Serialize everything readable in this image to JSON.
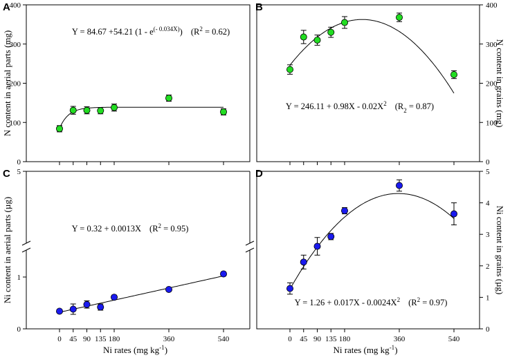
{
  "chart_data": [
    {
      "panel": "A",
      "type": "scatter",
      "ylabel": "N content in aerial parts (mg)",
      "xlabel": "",
      "x": [
        0,
        45,
        90,
        135,
        180,
        360,
        540
      ],
      "y": [
        84,
        131,
        131,
        130,
        138,
        162,
        127
      ],
      "err": [
        8,
        10,
        9,
        8,
        9,
        8,
        8
      ],
      "yticks": [
        0,
        100,
        200,
        300,
        400
      ],
      "ylim": [
        0,
        400
      ],
      "marker_color": "#22dd22",
      "fit": "exp",
      "equation": {
        "pre": "Y = 84.67 +54.21 (1 - e",
        "sup": "(- 0.034X)",
        "r2": "(R",
        "r2sup": "2",
        "r2post": " = 0.62)"
      }
    },
    {
      "panel": "B",
      "type": "scatter",
      "ylabel": "N content in grains (mg)",
      "xlabel": "",
      "x": [
        0,
        45,
        90,
        135,
        180,
        360,
        540
      ],
      "y": [
        235,
        318,
        310,
        330,
        355,
        368,
        222
      ],
      "err": [
        12,
        17,
        13,
        13,
        15,
        11,
        10
      ],
      "yticks": [
        0,
        100,
        200,
        300,
        400
      ],
      "ylim": [
        0,
        400
      ],
      "marker_color": "#22dd22",
      "fit": "quadratic",
      "equation": {
        "pre": "Y = 246.11 + 0.98X - 0.02X",
        "sup": "2",
        "r2": "(R",
        "r2sup": "2",
        "r2post": " = 0.87)"
      }
    },
    {
      "panel": "C",
      "type": "scatter",
      "ylabel": "Ni content in aerial parts (µg)",
      "xlabel": "Ni rates (mg kg",
      "xlabel_sup": "-1",
      "x": [
        0,
        45,
        90,
        135,
        180,
        360,
        540
      ],
      "y": [
        0.34,
        0.38,
        0.47,
        0.42,
        0.61,
        0.76,
        1.06
      ],
      "err": [
        0.03,
        0.1,
        0.07,
        0.06,
        0.04,
        0.03,
        0.04
      ],
      "xticks": [
        "0",
        "45",
        "90",
        "135",
        "180",
        "360",
        "540"
      ],
      "yticks": [
        0,
        1,
        5
      ],
      "axis_break": true,
      "marker_color": "#1a1aee",
      "fit": "linear",
      "equation": {
        "pre": "Y = 0.32 + 0.0013X",
        "sup": "",
        "r2": "(R",
        "r2sup": "2",
        "r2post": " = 0.95)"
      }
    },
    {
      "panel": "D",
      "type": "scatter",
      "ylabel": "Ni content in grains (µg)",
      "xlabel": "Ni rates (mg kg",
      "xlabel_sup": "-1",
      "x": [
        0,
        45,
        90,
        135,
        180,
        360,
        540
      ],
      "y": [
        1.28,
        2.12,
        2.62,
        2.93,
        3.75,
        4.55,
        3.65
      ],
      "err": [
        0.18,
        0.22,
        0.28,
        0.1,
        0.1,
        0.18,
        0.35
      ],
      "xticks": [
        "0",
        "45",
        "90",
        "135",
        "180",
        "360",
        "540"
      ],
      "yticks": [
        0,
        1,
        2,
        3,
        4,
        5
      ],
      "ylim": [
        0,
        5
      ],
      "marker_color": "#1a1aee",
      "fit": "quadratic",
      "equation": {
        "pre": "Y = 1.26 + 0.017X - 0.0024X",
        "sup": "2",
        "r2": "(R",
        "r2sup": "2",
        "r2post": " = 0.97)"
      }
    }
  ]
}
